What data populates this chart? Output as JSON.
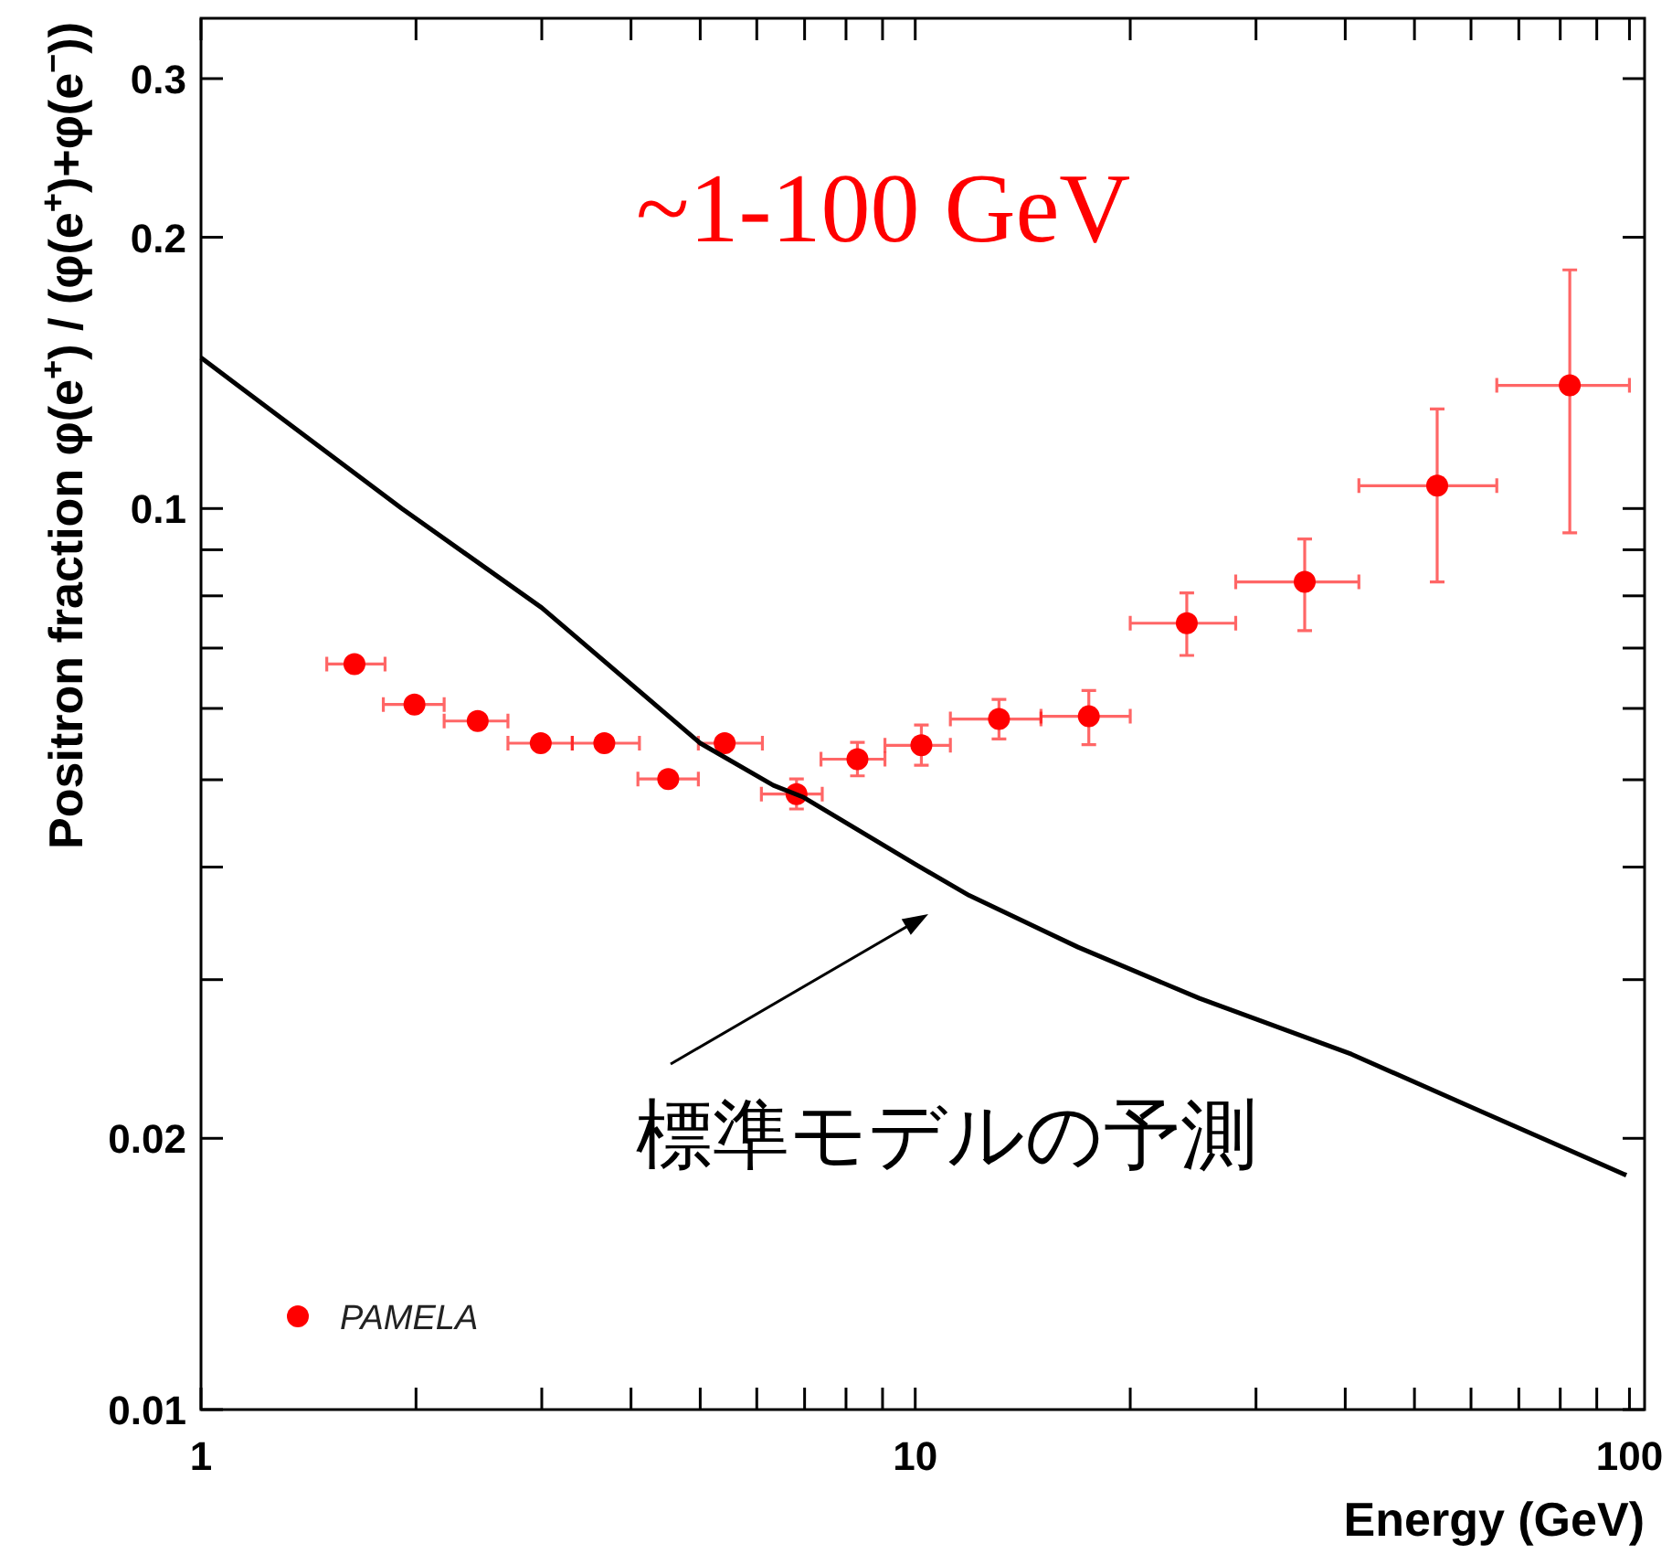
{
  "chart_data": {
    "type": "scatter",
    "xlabel": "Energy (GeV)",
    "ylabel": "Positron fraction   φ(e$^{+}$) / (φ(e$^{+}$)+φ(e$^{−}$))",
    "log": "xy",
    "xlim": [
      1,
      105
    ],
    "ylim": [
      0.01,
      0.35
    ],
    "xticks": [
      1,
      {
        "value": 2,
        "label": null
      },
      {
        "value": 3,
        "label": null
      },
      {
        "value": 4,
        "label": null
      },
      {
        "value": 5,
        "label": null
      },
      {
        "value": 6,
        "label": null
      },
      {
        "value": 7,
        "label": null
      },
      {
        "value": 8,
        "label": null
      },
      {
        "value": 9,
        "label": null
      },
      10,
      {
        "value": 20,
        "label": null
      },
      {
        "value": 30,
        "label": null
      },
      {
        "value": 40,
        "label": null
      },
      {
        "value": 50,
        "label": null
      },
      {
        "value": 60,
        "label": null
      },
      {
        "value": 70,
        "label": null
      },
      {
        "value": 80,
        "label": null
      },
      {
        "value": 90,
        "label": null
      },
      100
    ],
    "yticks": [
      0.01,
      0.02,
      {
        "value": 0.03,
        "label": null
      },
      {
        "value": 0.04,
        "label": null
      },
      {
        "value": 0.05,
        "label": null
      },
      {
        "value": 0.06,
        "label": null
      },
      {
        "value": 0.07,
        "label": null
      },
      {
        "value": 0.08,
        "label": null
      },
      {
        "value": 0.09,
        "label": null
      },
      0.1,
      0.2,
      0.3
    ],
    "grid": false,
    "legend": "bottom left",
    "series": [
      {
        "name": "PAMELA",
        "marker": "circle",
        "color": "#ff0000",
        "x": [
          1.64,
          1.99,
          2.44,
          2.99,
          3.67,
          4.51,
          5.41,
          6.82,
          8.3,
          10.2,
          13.1,
          17.5,
          24.0,
          35.1,
          53.8,
          82.5
        ],
        "values": [
          0.0672,
          0.0606,
          0.0581,
          0.0549,
          0.0549,
          0.0501,
          0.0549,
          0.0482,
          0.0527,
          0.0546,
          0.0584,
          0.0588,
          0.0746,
          0.0829,
          0.106,
          0.137
        ],
        "errors": [
          null,
          null,
          null,
          null,
          null,
          null,
          null,
          [
            0.0464,
            0.0501
          ],
          [
            0.0505,
            0.055
          ],
          [
            0.0519,
            0.0575
          ],
          [
            0.0555,
            0.0614
          ],
          [
            0.0547,
            0.0628
          ],
          [
            0.0687,
            0.0806
          ],
          [
            0.0732,
            0.0925
          ],
          [
            0.0829,
            0.129
          ],
          [
            0.094,
            0.184
          ]
        ],
        "xerrors": [
          [
            1.5,
            1.81
          ],
          [
            1.8,
            2.19
          ],
          [
            2.19,
            2.69
          ],
          [
            2.69,
            3.31
          ],
          [
            3.31,
            4.11
          ],
          [
            4.09,
            4.97
          ],
          [
            4.97,
            6.11
          ],
          [
            6.09,
            7.41
          ],
          [
            7.38,
            9.07
          ],
          [
            9.07,
            11.2
          ],
          [
            11.2,
            15.0
          ],
          [
            15.0,
            20.0
          ],
          [
            20.0,
            28.1
          ],
          [
            28.1,
            41.8
          ],
          [
            41.8,
            65.2
          ],
          [
            65.2,
            100
          ]
        ]
      },
      {
        "type": "line",
        "color": "#000000",
        "x": [
          1,
          1.91,
          3.0,
          5.0,
          6.33,
          6.98,
          10,
          11.9,
          16.9,
          25.0,
          40.8,
          60.5,
          99
        ],
        "values": [
          0.147,
          0.1,
          0.0776,
          0.0549,
          0.0493,
          0.0478,
          0.0403,
          0.0372,
          0.0326,
          0.0286,
          0.0248,
          0.0216,
          0.0182
        ]
      }
    ],
    "annotations": [
      "~1-100 GeV",
      "標準モデルの予測"
    ]
  }
}
